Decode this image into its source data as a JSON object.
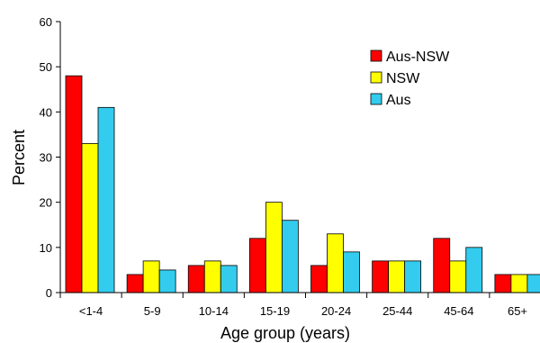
{
  "chart_data": {
    "type": "bar",
    "title": "",
    "xlabel": "Age group (years)",
    "ylabel": "Percent",
    "ylim": [
      0,
      60
    ],
    "yticks": [
      0,
      10,
      20,
      30,
      40,
      50,
      60
    ],
    "grid": false,
    "legend_position": "top-right",
    "categories": [
      "<1-4",
      "5-9",
      "10-14",
      "15-19",
      "20-24",
      "25-44",
      "45-64",
      "65+"
    ],
    "series": [
      {
        "name": "Aus-NSW",
        "color": "#ff0000",
        "values": [
          48,
          4,
          6,
          12,
          6,
          7,
          12,
          4
        ]
      },
      {
        "name": "NSW",
        "color": "#ffff00",
        "values": [
          33,
          7,
          7,
          20,
          13,
          7,
          7,
          4
        ]
      },
      {
        "name": "Aus",
        "color": "#33ccee",
        "values": [
          41,
          5,
          6,
          16,
          9,
          7,
          10,
          4
        ]
      }
    ]
  }
}
